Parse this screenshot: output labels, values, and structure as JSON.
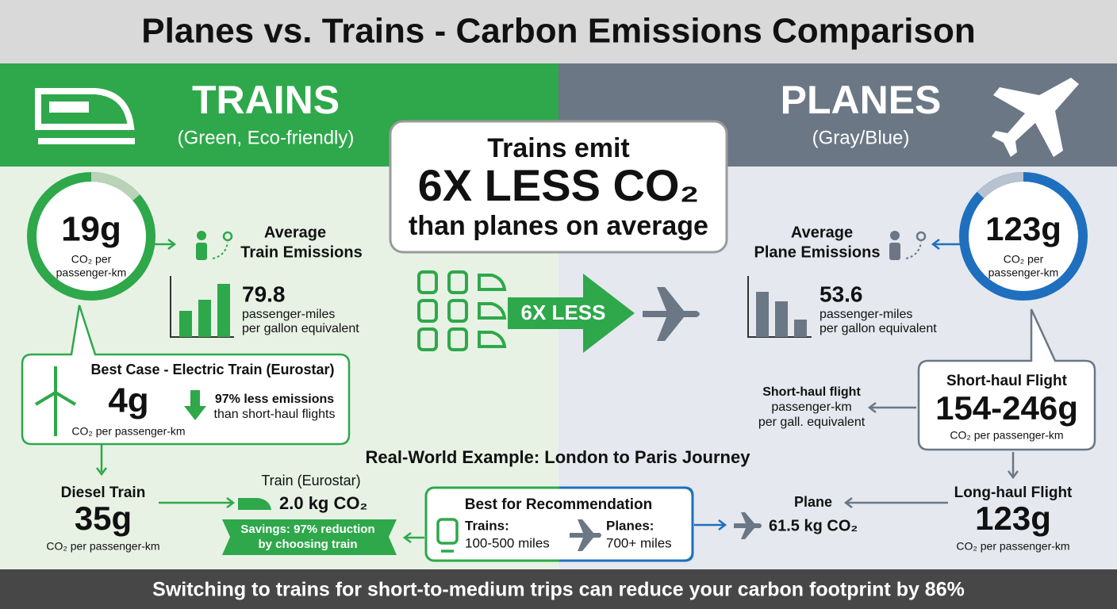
{
  "title": "Planes vs. Trains - Carbon Emissions Comparison",
  "trains": {
    "heading": "TRAINS",
    "subheading": "(Green, Eco-friendly)",
    "value": "19g",
    "unit": [
      "CO₂ per",
      "passenger-km"
    ],
    "label": [
      "Average",
      "Train Emissions"
    ],
    "mpg": "79.8",
    "mpg_label": [
      "passenger-miles",
      "per gallon equivalent"
    ],
    "best_case": {
      "title": "Best Case - Electric Train (Eurostar)",
      "value": "4g",
      "unit": "CO₂ per passenger-km",
      "note": [
        "97% less emissions",
        "than short-haul flights"
      ]
    },
    "diesel": {
      "title": "Diesel Train",
      "value": "35g",
      "unit": "CO₂ per passenger-km"
    }
  },
  "planes": {
    "heading": "PLANES",
    "subheading": "(Gray/Blue)",
    "value": "123g",
    "unit": [
      "CO₂ per",
      "passenger-km"
    ],
    "label": [
      "Average",
      "Plane Emissions"
    ],
    "mpg": "53.6",
    "mpg_label": [
      "passenger-miles",
      "per gallon equivalent"
    ],
    "short_haul": {
      "title": "Short-haul Flight",
      "value": "154-246g",
      "unit": "CO₂ per passenger-km"
    },
    "short_haul_note": [
      "Short-haul flight",
      "passenger-km",
      "per gall. equivalent"
    ],
    "long_haul": {
      "title": "Long-haul Flight",
      "value": "123g",
      "unit": "CO₂ per passenger-km"
    }
  },
  "callout": {
    "lines": [
      "Trains emit",
      "6X LESS CO₂",
      "than planes on average"
    ],
    "arrow": "6X LESS"
  },
  "example": {
    "title": "Real-World Example: London to Paris Journey",
    "train_label": "Train (Eurostar)",
    "train_value": "2.0 kg CO₂",
    "savings": [
      "Savings: 97% reduction",
      "by choosing train"
    ],
    "plane_label": "Plane",
    "plane_value": "61.5 kg CO₂",
    "recommendation": {
      "title": "Best for Recommendation",
      "trains": "Trains:",
      "trains_range": "100-500 miles",
      "planes": "Planes:",
      "planes_range": "700+ miles"
    }
  },
  "footer": "Switching to trains for short-to-medium trips can reduce your carbon footprint by 86%"
}
